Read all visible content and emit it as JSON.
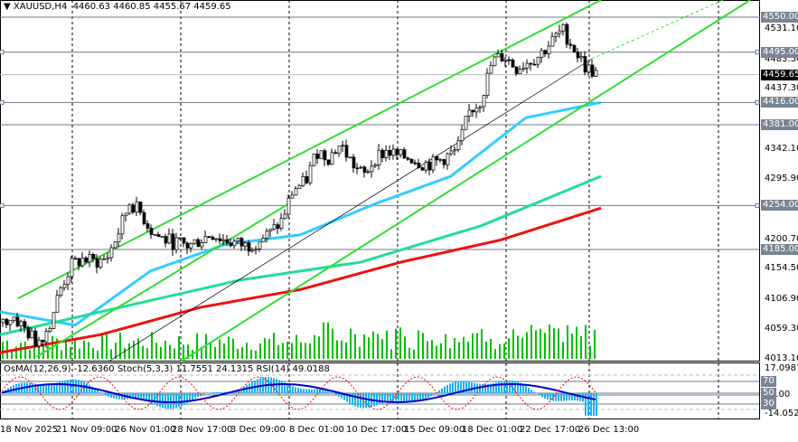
{
  "header": {
    "symbol": "XAUUSD,H4",
    "ohlc": "4460.63 4460.85 4455.67 4459.65"
  },
  "indicator_label": "OsMA(12,26,9) -12.6360  Stoch(5,3,3) 11.7551 24.1315  RSI(14) 49.0188",
  "colors": {
    "bull": "#00c000",
    "channel": "#33dd33",
    "ma_fast": "#33ccff",
    "ma_mid": "#22dd99",
    "ma_slow": "#ee1111",
    "level_line": "#6b7788",
    "histogram": "#1ab2f0",
    "stoch_main": "#0000cc",
    "stoch_signal": "#ff0000"
  },
  "price_axis": {
    "ticks": [
      "4531.10",
      "4483.50",
      "4437.30",
      "4342.10",
      "4295.90",
      "4200.70",
      "4154.50",
      "4106.90",
      "4059.30",
      "4013.10"
    ],
    "levels": [
      "4550.00",
      "4495.00",
      "4416.00",
      "4381.00",
      "4254.00",
      "4185.00"
    ],
    "current": "4459.65"
  },
  "indicator_axis": {
    "max": "17.0987",
    "zero": "0.00",
    "min": "-14.052",
    "levels": [
      "70",
      "50",
      "30"
    ]
  },
  "time_axis": [
    "18 Nov 2025",
    "21 Nov 09:00",
    "26 Nov 01:00",
    "28 Nov 17:00",
    "3 Dec 09:00",
    "8 Dec 01:00",
    "10 Dec 17:00",
    "15 Dec 09:00",
    "18 Dec 01:00",
    "22 Dec 17:00",
    "26 Dec 13:00"
  ],
  "chart_data": {
    "type": "candlestick",
    "ylim": [
      4013.1,
      4550
    ],
    "close_path": [
      4070,
      4080,
      4060,
      4040,
      4060,
      4120,
      4160,
      4170,
      4165,
      4170,
      4210,
      4260,
      4240,
      4210,
      4200,
      4195,
      4190,
      4200,
      4210,
      4200,
      4195,
      4190,
      4200,
      4210,
      4230,
      4280,
      4290,
      4340,
      4330,
      4350,
      4320,
      4300,
      4330,
      4340,
      4330,
      4330,
      4320,
      4320,
      4330,
      4340,
      4400,
      4420,
      4480,
      4490,
      4470,
      4480,
      4490,
      4510,
      4530,
      4500,
      4470,
      4460
    ],
    "ma_fast": [
      4087,
      4066,
      4151,
      4193,
      4208,
      4257,
      4300,
      4392,
      4416
    ],
    "ma_mid": [
      4051,
      4094,
      4137,
      4165,
      4222,
      4300
    ],
    "ma_slow": [
      4023,
      4051,
      4094,
      4122,
      4165,
      4200,
      4250
    ]
  }
}
